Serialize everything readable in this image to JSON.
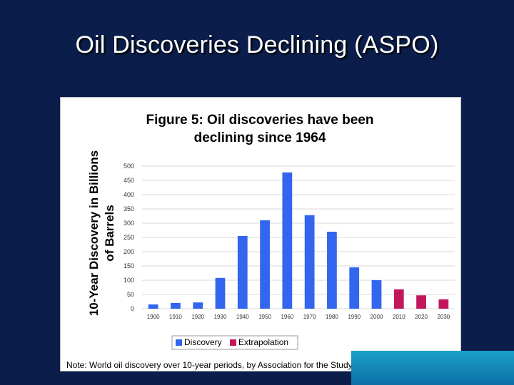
{
  "slide": {
    "title": "Oil Discoveries Declining (ASPO)"
  },
  "chart_data": {
    "type": "bar",
    "title_line1": "Figure 5: Oil discoveries have been",
    "title_line2": "declining since 1964",
    "ylabel_line1": "10-Year Discovery in Billions",
    "ylabel_line2": "of Barrels",
    "ylim": [
      0,
      500
    ],
    "yticks": [
      0,
      50,
      100,
      150,
      200,
      250,
      300,
      350,
      400,
      450,
      500
    ],
    "categories": [
      "1900",
      "1910",
      "1920",
      "1930",
      "1940",
      "1950",
      "1960",
      "1970",
      "1980",
      "1990",
      "2000",
      "2010",
      "2020",
      "2030"
    ],
    "series": [
      {
        "name": "Discovery",
        "color": "#3366ee",
        "values": [
          15,
          20,
          22,
          108,
          255,
          310,
          478,
          328,
          270,
          145,
          100,
          null,
          null,
          null
        ]
      },
      {
        "name": "Extrapolation",
        "color": "#c2185b",
        "values": [
          null,
          null,
          null,
          null,
          null,
          null,
          null,
          null,
          null,
          null,
          null,
          68,
          47,
          33
        ]
      }
    ],
    "grid": true,
    "legend_position": "bottom-center",
    "note": "Note: World oil discovery over 10-year periods, by Association for the Study of Peak Oil and Gas."
  }
}
